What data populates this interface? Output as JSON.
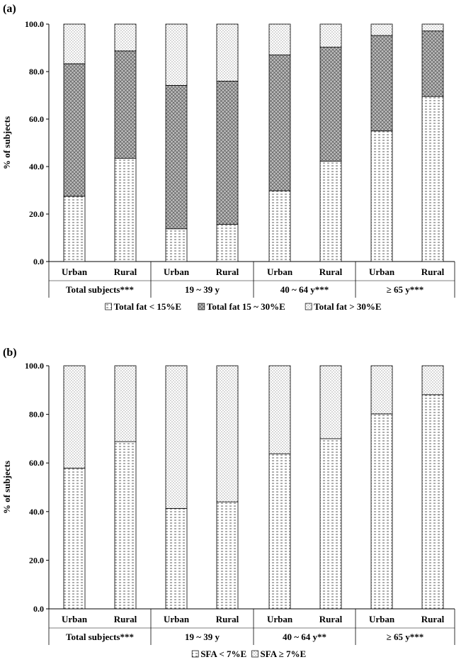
{
  "chart_data": [
    {
      "type": "bar",
      "stacked": true,
      "panel_label": "(a)",
      "ylabel": "% of subjects",
      "ylim": [
        0,
        100
      ],
      "yticks": [
        "0.0",
        "20.0",
        "40.0",
        "60.0",
        "80.0",
        "100.0"
      ],
      "categories": [
        "Urban",
        "Rural",
        "Urban",
        "Rural",
        "Urban",
        "Rural",
        "Urban",
        "Rural"
      ],
      "groups": [
        "Total subjects***",
        "19 ~ 39 y",
        "40 ~ 64 y***",
        "≥ 65 y***"
      ],
      "series": [
        {
          "name": "Total fat < 15%E",
          "pattern": "hlines",
          "values": [
            27.5,
            43.5,
            13.8,
            15.7,
            29.8,
            42.3,
            55.0,
            69.5
          ]
        },
        {
          "name": "Total fat 15 ~ 30%E",
          "pattern": "crosshatch",
          "values": [
            55.8,
            45.2,
            60.4,
            60.3,
            57.2,
            48.0,
            40.2,
            27.6
          ]
        },
        {
          "name": "Total fat > 30%E",
          "pattern": "dots",
          "values": [
            16.7,
            11.3,
            25.8,
            24.0,
            13.0,
            9.7,
            4.8,
            2.9
          ]
        }
      ],
      "legend_position": "bottom",
      "grid": false
    },
    {
      "type": "bar",
      "stacked": true,
      "panel_label": "(b)",
      "ylabel": "% of subjects",
      "ylim": [
        0,
        100
      ],
      "yticks": [
        "0.0",
        "20.0",
        "40.0",
        "60.0",
        "80.0",
        "100.0"
      ],
      "categories": [
        "Urban",
        "Rural",
        "Urban",
        "Rural",
        "Urban",
        "Rural",
        "Urban",
        "Rural"
      ],
      "groups": [
        "Total subjects***",
        "19 ~ 39 y",
        "40 ~ 64 y**",
        "≥ 65 y***"
      ],
      "series": [
        {
          "name": "SFA < 7%E",
          "pattern": "hlines",
          "values": [
            57.9,
            68.8,
            41.3,
            44.0,
            63.8,
            70.0,
            80.2,
            88.1
          ]
        },
        {
          "name": "SFA ≥ 7%E",
          "pattern": "dots",
          "values": [
            42.1,
            31.2,
            58.7,
            56.0,
            36.2,
            30.0,
            19.8,
            11.9
          ]
        }
      ],
      "legend_position": "bottom",
      "grid": false
    }
  ]
}
